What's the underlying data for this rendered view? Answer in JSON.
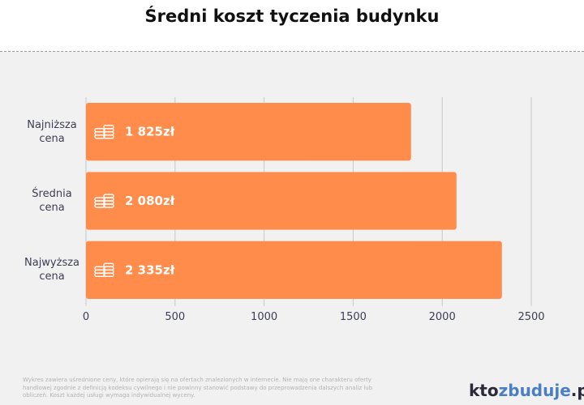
{
  "chart_data": {
    "type": "bar",
    "orientation": "horizontal",
    "title": "Średni koszt tyczenia budynku",
    "categories": [
      "Najniższa cena",
      "Średnia cena",
      "Najwyższa cena"
    ],
    "values": [
      1825,
      2080,
      2335
    ],
    "value_labels": [
      "1 825zł",
      "2 080zł",
      "2 335zł"
    ],
    "color": "#ff8c4b",
    "xlim": [
      0,
      2500
    ],
    "xticks": [
      0,
      500,
      1000,
      1500,
      2000,
      2500
    ],
    "grid": true
  },
  "footnote": "Wykres zawiera uśrednione ceny, które opierają się na ofertach znalezionych w internecie. Nie mają one charakteru oferty handlowej zgodnie z definicją kodeksu cywilnego i nie powinny stanowić podstawy do przeprowadzenia dalszych analiz lub obliczeń. Koszt każdej usługi wymaga indywidualnej wyceny.",
  "logo": [
    "kto",
    "zbuduje",
    ".pl"
  ]
}
